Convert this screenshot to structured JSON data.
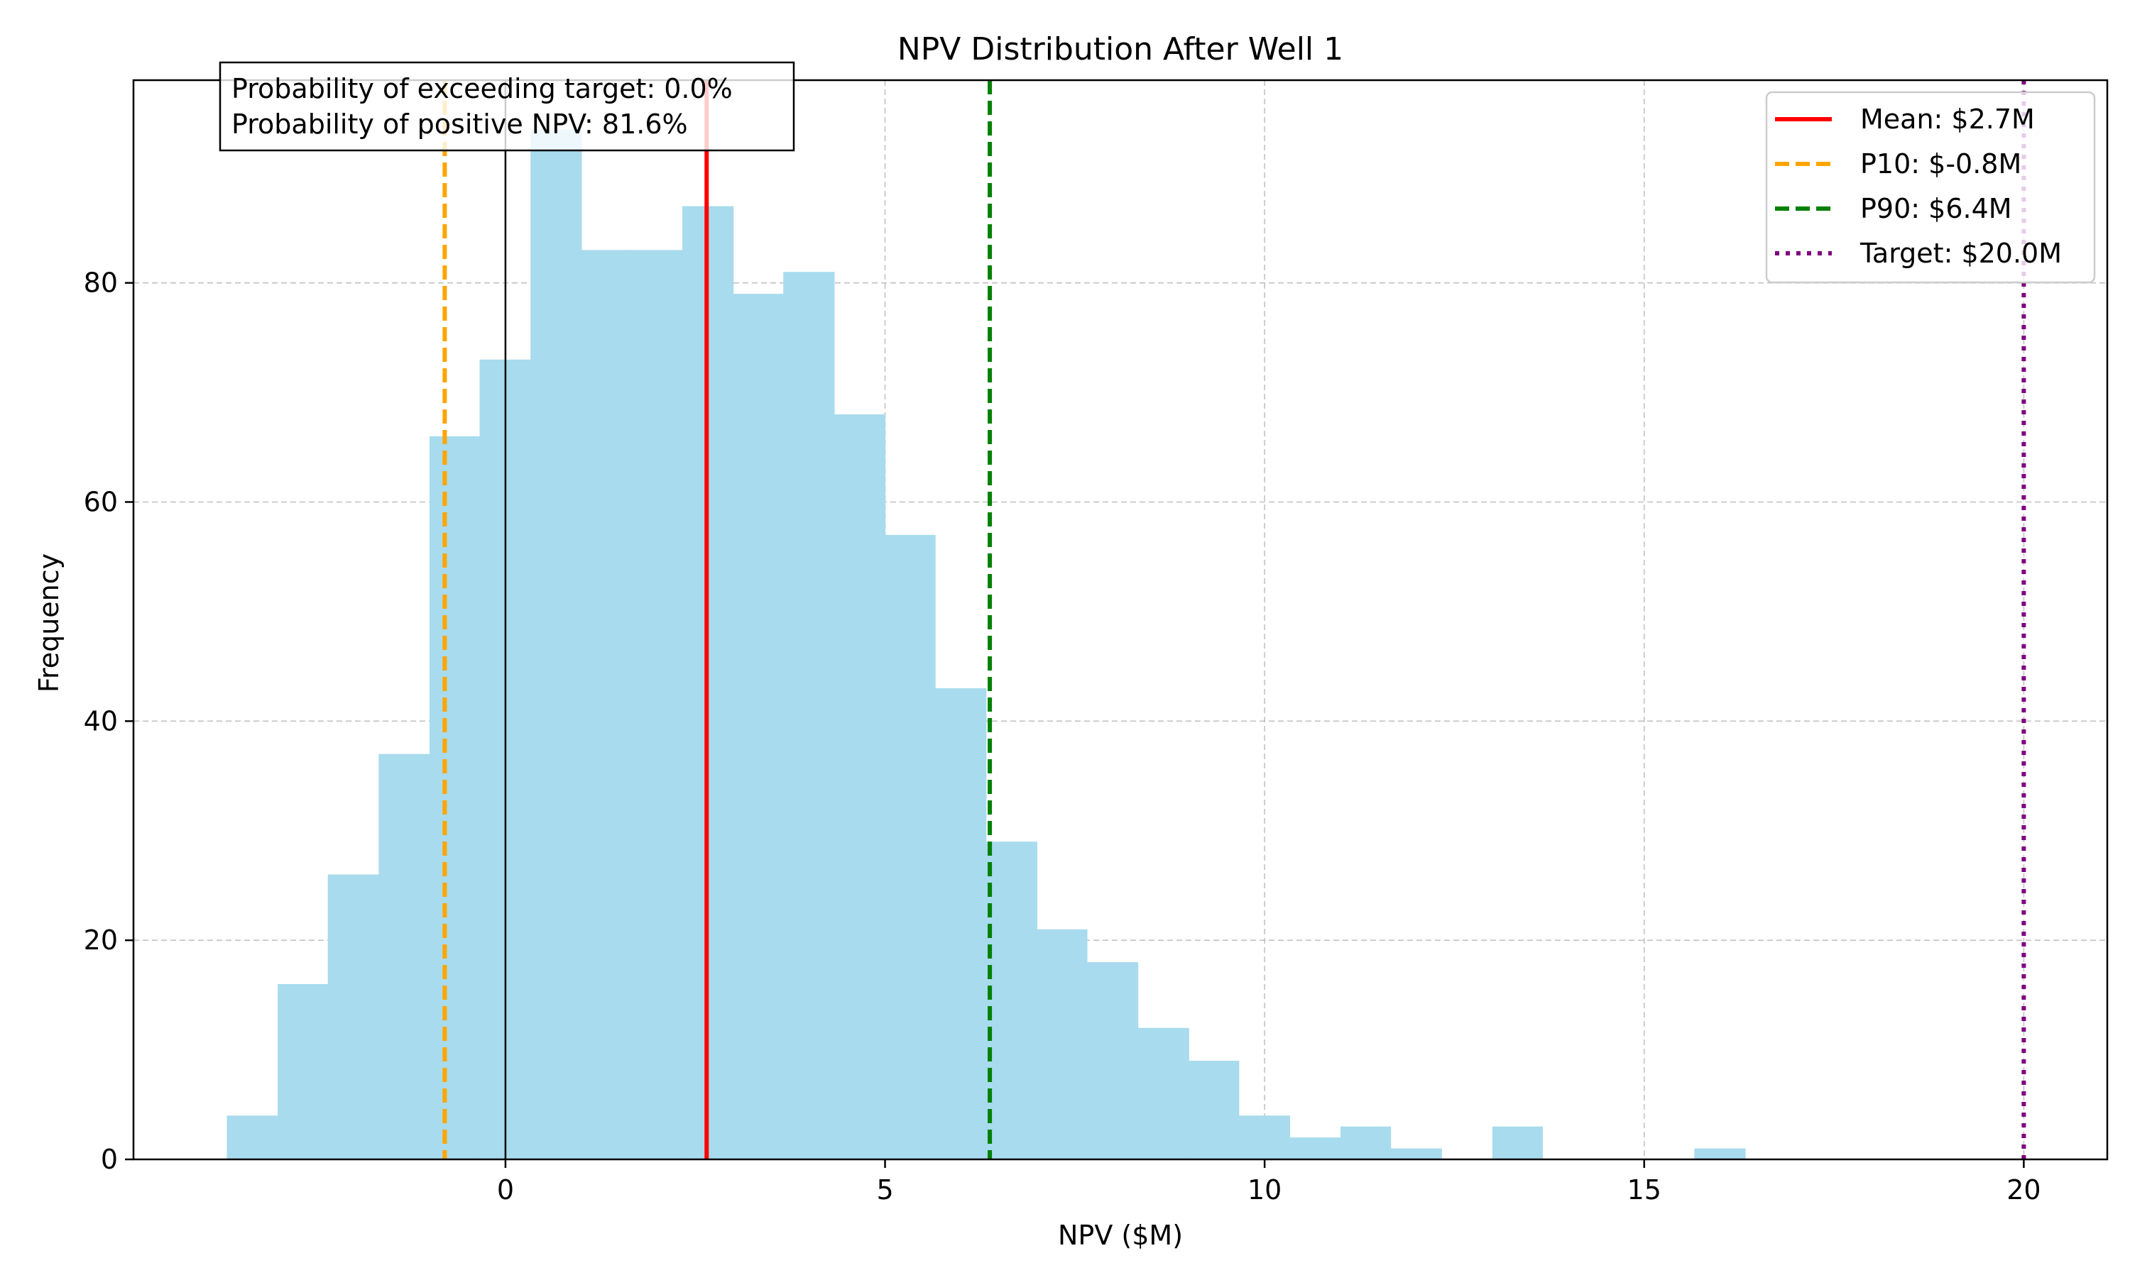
{
  "chart_data": {
    "type": "histogram",
    "title": "NPV Distribution After Well 1",
    "xlabel": "NPV ($M)",
    "ylabel": "Frequency",
    "xlim": [
      -4.9,
      21.1
    ],
    "ylim": [
      0,
      98.5
    ],
    "xticks": [
      0,
      5,
      10,
      15,
      20
    ],
    "yticks": [
      0,
      20,
      40,
      60,
      80
    ],
    "grid": true,
    "bar_color": "#a8dbed",
    "bin_width": 0.667,
    "bins": [
      {
        "x0": -3.67,
        "x1": -3.0,
        "count": 4
      },
      {
        "x0": -3.0,
        "x1": -2.34,
        "count": 16
      },
      {
        "x0": -2.34,
        "x1": -1.67,
        "count": 26
      },
      {
        "x0": -1.67,
        "x1": -1.0,
        "count": 37
      },
      {
        "x0": -1.0,
        "x1": -0.34,
        "count": 66
      },
      {
        "x0": -0.34,
        "x1": 0.33,
        "count": 73
      },
      {
        "x0": 0.33,
        "x1": 1.0,
        "count": 94
      },
      {
        "x0": 1.0,
        "x1": 1.66,
        "count": 83
      },
      {
        "x0": 1.66,
        "x1": 2.33,
        "count": 83
      },
      {
        "x0": 2.33,
        "x1": 3.0,
        "count": 87
      },
      {
        "x0": 3.0,
        "x1": 3.66,
        "count": 79
      },
      {
        "x0": 3.66,
        "x1": 4.33,
        "count": 81
      },
      {
        "x0": 4.33,
        "x1": 5.0,
        "count": 68
      },
      {
        "x0": 5.0,
        "x1": 5.66,
        "count": 57
      },
      {
        "x0": 5.66,
        "x1": 6.33,
        "count": 43
      },
      {
        "x0": 6.33,
        "x1": 7.0,
        "count": 29
      },
      {
        "x0": 7.0,
        "x1": 7.66,
        "count": 21
      },
      {
        "x0": 7.66,
        "x1": 8.33,
        "count": 18
      },
      {
        "x0": 8.33,
        "x1": 9.0,
        "count": 12
      },
      {
        "x0": 9.0,
        "x1": 9.66,
        "count": 9
      },
      {
        "x0": 9.66,
        "x1": 10.33,
        "count": 4
      },
      {
        "x0": 10.33,
        "x1": 11.0,
        "count": 2
      },
      {
        "x0": 11.0,
        "x1": 11.66,
        "count": 3
      },
      {
        "x0": 11.66,
        "x1": 12.33,
        "count": 1
      },
      {
        "x0": 12.33,
        "x1": 13.0,
        "count": 0
      },
      {
        "x0": 13.0,
        "x1": 13.66,
        "count": 3
      },
      {
        "x0": 13.66,
        "x1": 14.33,
        "count": 0
      },
      {
        "x0": 14.33,
        "x1": 15.0,
        "count": 0
      },
      {
        "x0": 15.0,
        "x1": 15.66,
        "count": 0
      },
      {
        "x0": 15.66,
        "x1": 16.33,
        "count": 1
      }
    ],
    "reference_lines": [
      {
        "label": "Mean: $2.7M",
        "x": 2.65,
        "color": "#ff0000",
        "style": "solid"
      },
      {
        "label": "P10: $-0.8M",
        "x": -0.8,
        "color": "#ffa500",
        "style": "dashed"
      },
      {
        "label": "P90: $6.4M",
        "x": 6.38,
        "color": "#008000",
        "style": "dashed"
      },
      {
        "label": "Target: $20.0M",
        "x": 20.0,
        "color": "#800080",
        "style": "dotted"
      }
    ],
    "zero_line": {
      "x": 0,
      "color": "#000000"
    },
    "legend": {
      "position": "upper right"
    },
    "annotation": {
      "lines": [
        "Probability of exceeding target: 0.0%",
        "Probability of positive NPV: 81.6%"
      ],
      "position": "upper left"
    }
  }
}
